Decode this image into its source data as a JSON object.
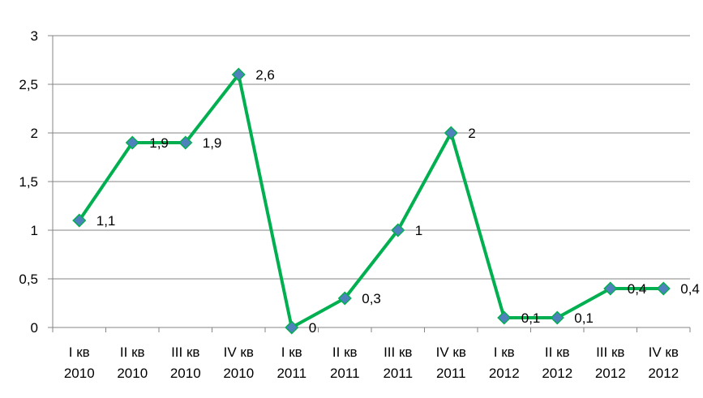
{
  "chart_data": {
    "type": "line",
    "categories": [
      [
        "I кв",
        "2010"
      ],
      [
        "II кв",
        "2010"
      ],
      [
        "III кв",
        "2010"
      ],
      [
        "IV кв",
        "2010"
      ],
      [
        "I кв",
        "2011"
      ],
      [
        "II кв",
        "2011"
      ],
      [
        "III кв",
        "2011"
      ],
      [
        "IV кв",
        "2011"
      ],
      [
        "I кв",
        "2012"
      ],
      [
        "II кв",
        "2012"
      ],
      [
        "III кв",
        "2012"
      ],
      [
        "IV кв",
        "2012"
      ]
    ],
    "series": [
      {
        "values": [
          1.1,
          1.9,
          1.9,
          2.6,
          0,
          0.3,
          1,
          2,
          0.1,
          0.1,
          0.4,
          0.4
        ],
        "data_labels": [
          "1,1",
          "1,9",
          "1,9",
          "2,6",
          "0",
          "0,3",
          "1",
          "2",
          "0,1",
          "0,1",
          "0,4",
          "0,4"
        ]
      }
    ],
    "y_ticks": [
      "0",
      "0,5",
      "1",
      "1,5",
      "2",
      "2,5",
      "3"
    ],
    "ylim": [
      0,
      3
    ],
    "grid": true,
    "legend": "none",
    "colors": {
      "line": "#00b050",
      "marker_fill": "#4f81bd",
      "marker_stroke": "#00b050",
      "grid": "#868686",
      "axis": "#868686"
    }
  }
}
